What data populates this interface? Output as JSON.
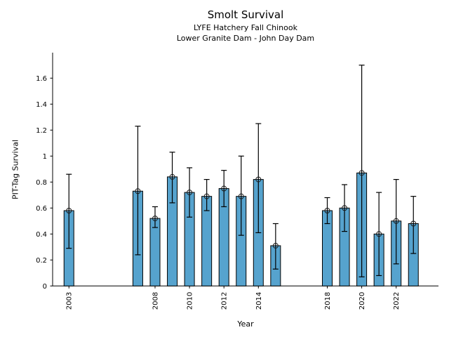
{
  "header": {
    "title": "Smolt Survival",
    "subtitle1": "LYFE Hatchery Fall Chinook",
    "subtitle2": "Lower Granite Dam - John Day Dam"
  },
  "chart_data": {
    "type": "bar",
    "title": "Smolt Survival",
    "subtitle": [
      "LYFE Hatchery Fall Chinook",
      "Lower Granite Dam - John Day Dam"
    ],
    "xlabel": "Year",
    "ylabel": "PIT-Tag Survival",
    "xlim": [
      2002,
      2024.5
    ],
    "ylim": [
      0,
      1.8
    ],
    "grid": false,
    "legend": "none",
    "bar_color": "#56a3ce",
    "bar_edge_color": "#000000",
    "error_bar_color": "#000000",
    "marker": "open-circle",
    "yticks": [
      0,
      0.2,
      0.4,
      0.6,
      0.8,
      1,
      1.2,
      1.4,
      1.6
    ],
    "ytick_labels": [
      "0",
      "0.2",
      "0.4",
      "0.6",
      "0.8",
      "1",
      "1.2",
      "1.4",
      "1.6"
    ],
    "xticks": [
      2003,
      2008,
      2010,
      2012,
      2014,
      2018,
      2020,
      2022
    ],
    "xtick_labels": [
      "2003",
      "2008",
      "2010",
      "2012",
      "2014",
      "2018",
      "2020",
      "2022"
    ],
    "xtick_rotation": 90,
    "series": [
      {
        "name": "PIT-Tag Survival",
        "points": [
          {
            "year": 2003,
            "value": 0.58,
            "err_low": 0.29,
            "err_high": 0.86
          },
          {
            "year": 2007,
            "value": 0.73,
            "err_low": 0.24,
            "err_high": 1.23
          },
          {
            "year": 2008,
            "value": 0.52,
            "err_low": 0.45,
            "err_high": 0.61
          },
          {
            "year": 2009,
            "value": 0.84,
            "err_low": 0.64,
            "err_high": 1.03
          },
          {
            "year": 2010,
            "value": 0.72,
            "err_low": 0.53,
            "err_high": 0.91
          },
          {
            "year": 2011,
            "value": 0.69,
            "err_low": 0.58,
            "err_high": 0.82
          },
          {
            "year": 2012,
            "value": 0.75,
            "err_low": 0.61,
            "err_high": 0.89
          },
          {
            "year": 2013,
            "value": 0.69,
            "err_low": 0.39,
            "err_high": 1.0
          },
          {
            "year": 2014,
            "value": 0.82,
            "err_low": 0.41,
            "err_high": 1.25
          },
          {
            "year": 2015,
            "value": 0.31,
            "err_low": 0.13,
            "err_high": 0.48
          },
          {
            "year": 2018,
            "value": 0.58,
            "err_low": 0.48,
            "err_high": 0.68
          },
          {
            "year": 2019,
            "value": 0.6,
            "err_low": 0.42,
            "err_high": 0.78
          },
          {
            "year": 2020,
            "value": 0.87,
            "err_low": 0.07,
            "err_high": 1.7
          },
          {
            "year": 2021,
            "value": 0.4,
            "err_low": 0.08,
            "err_high": 0.72
          },
          {
            "year": 2022,
            "value": 0.5,
            "err_low": 0.17,
            "err_high": 0.82
          },
          {
            "year": 2023,
            "value": 0.48,
            "err_low": 0.25,
            "err_high": 0.69
          }
        ]
      }
    ]
  }
}
